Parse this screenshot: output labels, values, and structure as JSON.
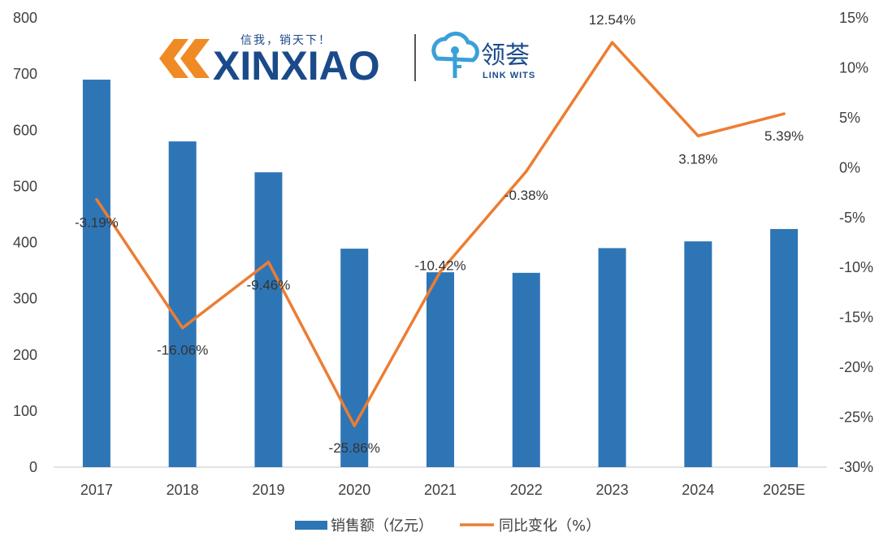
{
  "chart_data": {
    "type": "bar+line",
    "categories": [
      "2017",
      "2018",
      "2019",
      "2020",
      "2021",
      "2022",
      "2023",
      "2024",
      "2025E"
    ],
    "series": [
      {
        "name": "销售额（亿元）",
        "type": "bar",
        "axis": "left",
        "color": "#2e75b6",
        "values": [
          690,
          580,
          525,
          389,
          347,
          346,
          390,
          402,
          424
        ]
      },
      {
        "name": "同比变化（%）",
        "type": "line",
        "axis": "right",
        "color": "#ed7d31",
        "values": [
          -3.19,
          -16.06,
          -9.46,
          -25.86,
          -10.42,
          -0.38,
          12.54,
          3.18,
          5.39
        ],
        "labels": [
          "-3.19%",
          "-16.06%",
          "-9.46%",
          "-25.86%",
          "-10.42%",
          "-0.38%",
          "12.54%",
          "3.18%",
          "5.39%"
        ]
      }
    ],
    "y_left": {
      "min": 0,
      "max": 800,
      "step": 100,
      "ticks": [
        "0",
        "100",
        "200",
        "300",
        "400",
        "500",
        "600",
        "700",
        "800"
      ]
    },
    "y_right": {
      "min": -30,
      "max": 15,
      "step": 5,
      "ticks": [
        "-30%",
        "-25%",
        "-20%",
        "-15%",
        "-10%",
        "-5%",
        "0%",
        "5%",
        "10%",
        "15%"
      ]
    },
    "grid": false,
    "legend": "bottom-center"
  },
  "logos": {
    "left_brand": "XINXIAO",
    "left_slogan": "信我，销天下！",
    "right_brand_cn": "领荟",
    "right_brand_en": "LINK WITS"
  }
}
